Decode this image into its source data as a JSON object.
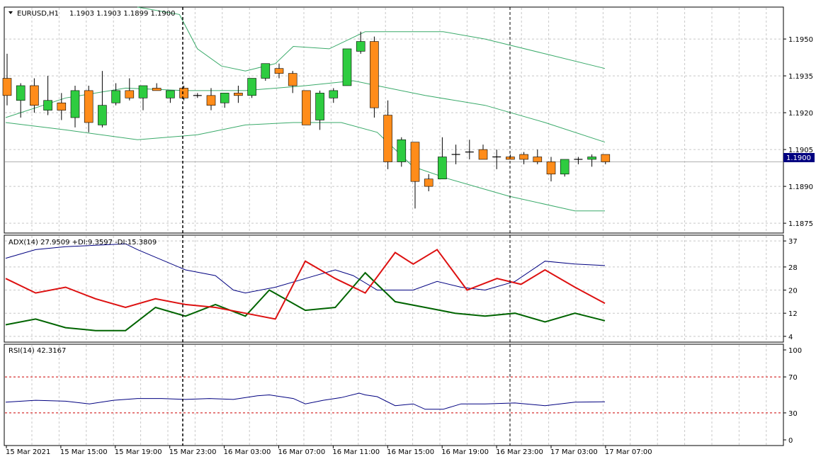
{
  "symbol_header": {
    "symbol": "EURUSD,H1",
    "ohlc": "1.1903 1.1903 1.1899 1.1900",
    "arrow_icon": "triangle-down-icon"
  },
  "colors": {
    "bull": "#2ecc40",
    "bear": "#ff8c1a",
    "candle_outline": "#000000",
    "bollinger": "#3aaa6a",
    "adx": "#000080",
    "plus_di": "#006400",
    "minus_di": "#dd1111",
    "rsi": "#000080",
    "rsi_levels": "#cc0000",
    "grid": "#c8c8c8",
    "price_tag_bg": "#000080",
    "price_tag_text": "#ffffff"
  },
  "time_labels": [
    "15 Mar 2021",
    "15 Mar 15:00",
    "15 Mar 19:00",
    "15 Mar 23:00",
    "16 Mar 03:00",
    "16 Mar 07:00",
    "16 Mar 11:00",
    "16 Mar 15:00",
    "16 Mar 19:00",
    "16 Mar 23:00",
    "17 Mar 03:00",
    "17 Mar 07:00"
  ],
  "chart_data": [
    {
      "type": "candlestick",
      "pane": "price",
      "title": "EURUSD,H1",
      "y_ticks": [
        "1.1950",
        "1.1935",
        "1.1920",
        "1.1905",
        "1.1890",
        "1.1875"
      ],
      "ylim": [
        1.1871,
        1.1963
      ],
      "current_price": "1.1900",
      "candles": [
        {
          "o": 1.1934,
          "h": 1.1944,
          "l": 1.1923,
          "c": 1.1927
        },
        {
          "o": 1.1925,
          "h": 1.1932,
          "l": 1.1918,
          "c": 1.1931
        },
        {
          "o": 1.1931,
          "h": 1.1934,
          "l": 1.192,
          "c": 1.1923
        },
        {
          "o": 1.1921,
          "h": 1.1935,
          "l": 1.1919,
          "c": 1.1925
        },
        {
          "o": 1.1924,
          "h": 1.1928,
          "l": 1.1917,
          "c": 1.1921
        },
        {
          "o": 1.1918,
          "h": 1.1931,
          "l": 1.1914,
          "c": 1.1929
        },
        {
          "o": 1.1929,
          "h": 1.1931,
          "l": 1.1912,
          "c": 1.1916
        },
        {
          "o": 1.1915,
          "h": 1.1937,
          "l": 1.1914,
          "c": 1.1923
        },
        {
          "o": 1.1924,
          "h": 1.1932,
          "l": 1.1923,
          "c": 1.1929
        },
        {
          "o": 1.1929,
          "h": 1.1934,
          "l": 1.1925,
          "c": 1.1926
        },
        {
          "o": 1.1926,
          "h": 1.1931,
          "l": 1.1921,
          "c": 1.1931
        },
        {
          "o": 1.193,
          "h": 1.1932,
          "l": 1.1929,
          "c": 1.1929
        },
        {
          "o": 1.1926,
          "h": 1.1929,
          "l": 1.1924,
          "c": 1.1929
        },
        {
          "o": 1.193,
          "h": 1.1931,
          "l": 1.1925,
          "c": 1.1926
        },
        {
          "o": 1.1927,
          "h": 1.1928,
          "l": 1.1926,
          "c": 1.1927
        },
        {
          "o": 1.1927,
          "h": 1.193,
          "l": 1.1921,
          "c": 1.1923
        },
        {
          "o": 1.1924,
          "h": 1.1928,
          "l": 1.1922,
          "c": 1.1928
        },
        {
          "o": 1.1928,
          "h": 1.1931,
          "l": 1.1924,
          "c": 1.1927
        },
        {
          "o": 1.1927,
          "h": 1.1934,
          "l": 1.1926,
          "c": 1.1934
        },
        {
          "o": 1.1934,
          "h": 1.194,
          "l": 1.1933,
          "c": 1.194
        },
        {
          "o": 1.1938,
          "h": 1.194,
          "l": 1.1934,
          "c": 1.1936
        },
        {
          "o": 1.1936,
          "h": 1.1937,
          "l": 1.1928,
          "c": 1.1931
        },
        {
          "o": 1.1929,
          "h": 1.1929,
          "l": 1.1915,
          "c": 1.1915
        },
        {
          "o": 1.1917,
          "h": 1.1929,
          "l": 1.1913,
          "c": 1.1928
        },
        {
          "o": 1.1926,
          "h": 1.193,
          "l": 1.1924,
          "c": 1.1929
        },
        {
          "o": 1.1931,
          "h": 1.1946,
          "l": 1.1931,
          "c": 1.1946
        },
        {
          "o": 1.1945,
          "h": 1.1953,
          "l": 1.1944,
          "c": 1.1949
        },
        {
          "o": 1.1949,
          "h": 1.1951,
          "l": 1.1918,
          "c": 1.1922
        },
        {
          "o": 1.1919,
          "h": 1.1925,
          "l": 1.1897,
          "c": 1.19
        },
        {
          "o": 1.19,
          "h": 1.191,
          "l": 1.1898,
          "c": 1.1909
        },
        {
          "o": 1.1908,
          "h": 1.1908,
          "l": 1.1881,
          "c": 1.1892
        },
        {
          "o": 1.1893,
          "h": 1.1895,
          "l": 1.1888,
          "c": 1.189
        },
        {
          "o": 1.1893,
          "h": 1.191,
          "l": 1.1893,
          "c": 1.1902
        },
        {
          "o": 1.1903,
          "h": 1.1907,
          "l": 1.1899,
          "c": 1.1903
        },
        {
          "o": 1.1904,
          "h": 1.1909,
          "l": 1.1901,
          "c": 1.1904
        },
        {
          "o": 1.1905,
          "h": 1.1907,
          "l": 1.1901,
          "c": 1.1901
        },
        {
          "o": 1.1902,
          "h": 1.1905,
          "l": 1.1897,
          "c": 1.1902
        },
        {
          "o": 1.1902,
          "h": 1.1903,
          "l": 1.1901,
          "c": 1.1901
        },
        {
          "o": 1.1903,
          "h": 1.1904,
          "l": 1.1899,
          "c": 1.1901
        },
        {
          "o": 1.1902,
          "h": 1.1905,
          "l": 1.1899,
          "c": 1.19
        },
        {
          "o": 1.19,
          "h": 1.1902,
          "l": 1.1892,
          "c": 1.1895
        },
        {
          "o": 1.1895,
          "h": 1.1901,
          "l": 1.1894,
          "c": 1.1901
        },
        {
          "o": 1.1901,
          "h": 1.1902,
          "l": 1.1899,
          "c": 1.1901
        },
        {
          "o": 1.1901,
          "h": 1.1903,
          "l": 1.1898,
          "c": 1.1902
        },
        {
          "o": 1.1903,
          "h": 1.1903,
          "l": 1.1899,
          "c": 1.19
        }
      ],
      "bollinger_upper": [
        [
          22,
          1.1963
        ],
        [
          29,
          1.196
        ],
        [
          32,
          1.1946
        ],
        [
          36,
          1.1939
        ],
        [
          40,
          1.1937
        ],
        [
          45,
          1.194
        ],
        [
          48,
          1.1947
        ],
        [
          54,
          1.1946
        ],
        [
          60,
          1.1953
        ],
        [
          73,
          1.1953
        ],
        [
          80,
          1.195
        ],
        [
          90,
          1.1944
        ],
        [
          100,
          1.1938
        ]
      ],
      "bollinger_middle": [
        [
          0,
          1.1918
        ],
        [
          10,
          1.1926
        ],
        [
          20,
          1.193
        ],
        [
          30,
          1.1929
        ],
        [
          40,
          1.1929
        ],
        [
          50,
          1.1931
        ],
        [
          58,
          1.1933
        ],
        [
          62,
          1.1931
        ],
        [
          70,
          1.1927
        ],
        [
          80,
          1.1923
        ],
        [
          90,
          1.1916
        ],
        [
          100,
          1.1908
        ]
      ],
      "bollinger_lower": [
        [
          0,
          1.1916
        ],
        [
          10,
          1.1913
        ],
        [
          22,
          1.1909
        ],
        [
          32,
          1.1911
        ],
        [
          40,
          1.1915
        ],
        [
          48,
          1.1916
        ],
        [
          56,
          1.1916
        ],
        [
          62,
          1.1912
        ],
        [
          68,
          1.1898
        ],
        [
          74,
          1.1893
        ],
        [
          84,
          1.1886
        ],
        [
          95,
          1.188
        ],
        [
          100,
          1.188
        ]
      ]
    },
    {
      "type": "line",
      "pane": "adx",
      "title": "ADX(14) 27.9509 +DI:9.3597 -DI:15.3809",
      "y_ticks": [
        "37",
        "28",
        "20",
        "12",
        "4"
      ],
      "ylim": [
        2,
        39
      ],
      "series": [
        {
          "name": "ADX",
          "values": [
            [
              0,
              31
            ],
            [
              5,
              34
            ],
            [
              10,
              35
            ],
            [
              20,
              36
            ],
            [
              22,
              34
            ],
            [
              30,
              27
            ],
            [
              35,
              25
            ],
            [
              38,
              20
            ],
            [
              40,
              19
            ],
            [
              45,
              21
            ],
            [
              50,
              24
            ],
            [
              55,
              27
            ],
            [
              58,
              25
            ],
            [
              62,
              20
            ],
            [
              68,
              20
            ],
            [
              72,
              23
            ],
            [
              76,
              21
            ],
            [
              80,
              20
            ],
            [
              85,
              23
            ],
            [
              90,
              30
            ],
            [
              95,
              29
            ],
            [
              100,
              28.5
            ]
          ]
        },
        {
          "name": "+DI",
          "values": [
            [
              0,
              8
            ],
            [
              5,
              10
            ],
            [
              10,
              7
            ],
            [
              15,
              6
            ],
            [
              20,
              6
            ],
            [
              25,
              14
            ],
            [
              30,
              11
            ],
            [
              35,
              15
            ],
            [
              40,
              11
            ],
            [
              44,
              20
            ],
            [
              50,
              13
            ],
            [
              55,
              14
            ],
            [
              60,
              26
            ],
            [
              65,
              16
            ],
            [
              70,
              14
            ],
            [
              75,
              12
            ],
            [
              80,
              11
            ],
            [
              85,
              12
            ],
            [
              90,
              9
            ],
            [
              95,
              12
            ],
            [
              100,
              9.4
            ]
          ]
        },
        {
          "name": "-DI",
          "values": [
            [
              0,
              24
            ],
            [
              5,
              19
            ],
            [
              10,
              21
            ],
            [
              15,
              17
            ],
            [
              20,
              14
            ],
            [
              25,
              17
            ],
            [
              30,
              15
            ],
            [
              35,
              14
            ],
            [
              40,
              12
            ],
            [
              45,
              10
            ],
            [
              50,
              30
            ],
            [
              55,
              24
            ],
            [
              60,
              19
            ],
            [
              65,
              33
            ],
            [
              68,
              29
            ],
            [
              72,
              34
            ],
            [
              77,
              20
            ],
            [
              82,
              24
            ],
            [
              86,
              22
            ],
            [
              90,
              27
            ],
            [
              95,
              21
            ],
            [
              100,
              15.4
            ]
          ]
        }
      ]
    },
    {
      "type": "line",
      "pane": "rsi",
      "title": "RSI(14) 42.3167",
      "y_ticks": [
        "100",
        "70",
        "30",
        "0"
      ],
      "ylim": [
        0,
        100
      ],
      "levels": [
        70,
        30
      ],
      "series": [
        {
          "name": "RSI",
          "values": [
            [
              0,
              42
            ],
            [
              5,
              44
            ],
            [
              10,
              43
            ],
            [
              14,
              40
            ],
            [
              18,
              44
            ],
            [
              22,
              46
            ],
            [
              26,
              46
            ],
            [
              30,
              45
            ],
            [
              34,
              46
            ],
            [
              38,
              45
            ],
            [
              42,
              49
            ],
            [
              44,
              50
            ],
            [
              48,
              46
            ],
            [
              50,
              40
            ],
            [
              53,
              44
            ],
            [
              56,
              47
            ],
            [
              59,
              52
            ],
            [
              60,
              50
            ],
            [
              62,
              48
            ],
            [
              65,
              38
            ],
            [
              68,
              40
            ],
            [
              70,
              34
            ],
            [
              73,
              34
            ],
            [
              76,
              40
            ],
            [
              80,
              40
            ],
            [
              85,
              41
            ],
            [
              90,
              38
            ],
            [
              95,
              42
            ],
            [
              100,
              42.3
            ]
          ]
        }
      ]
    }
  ]
}
